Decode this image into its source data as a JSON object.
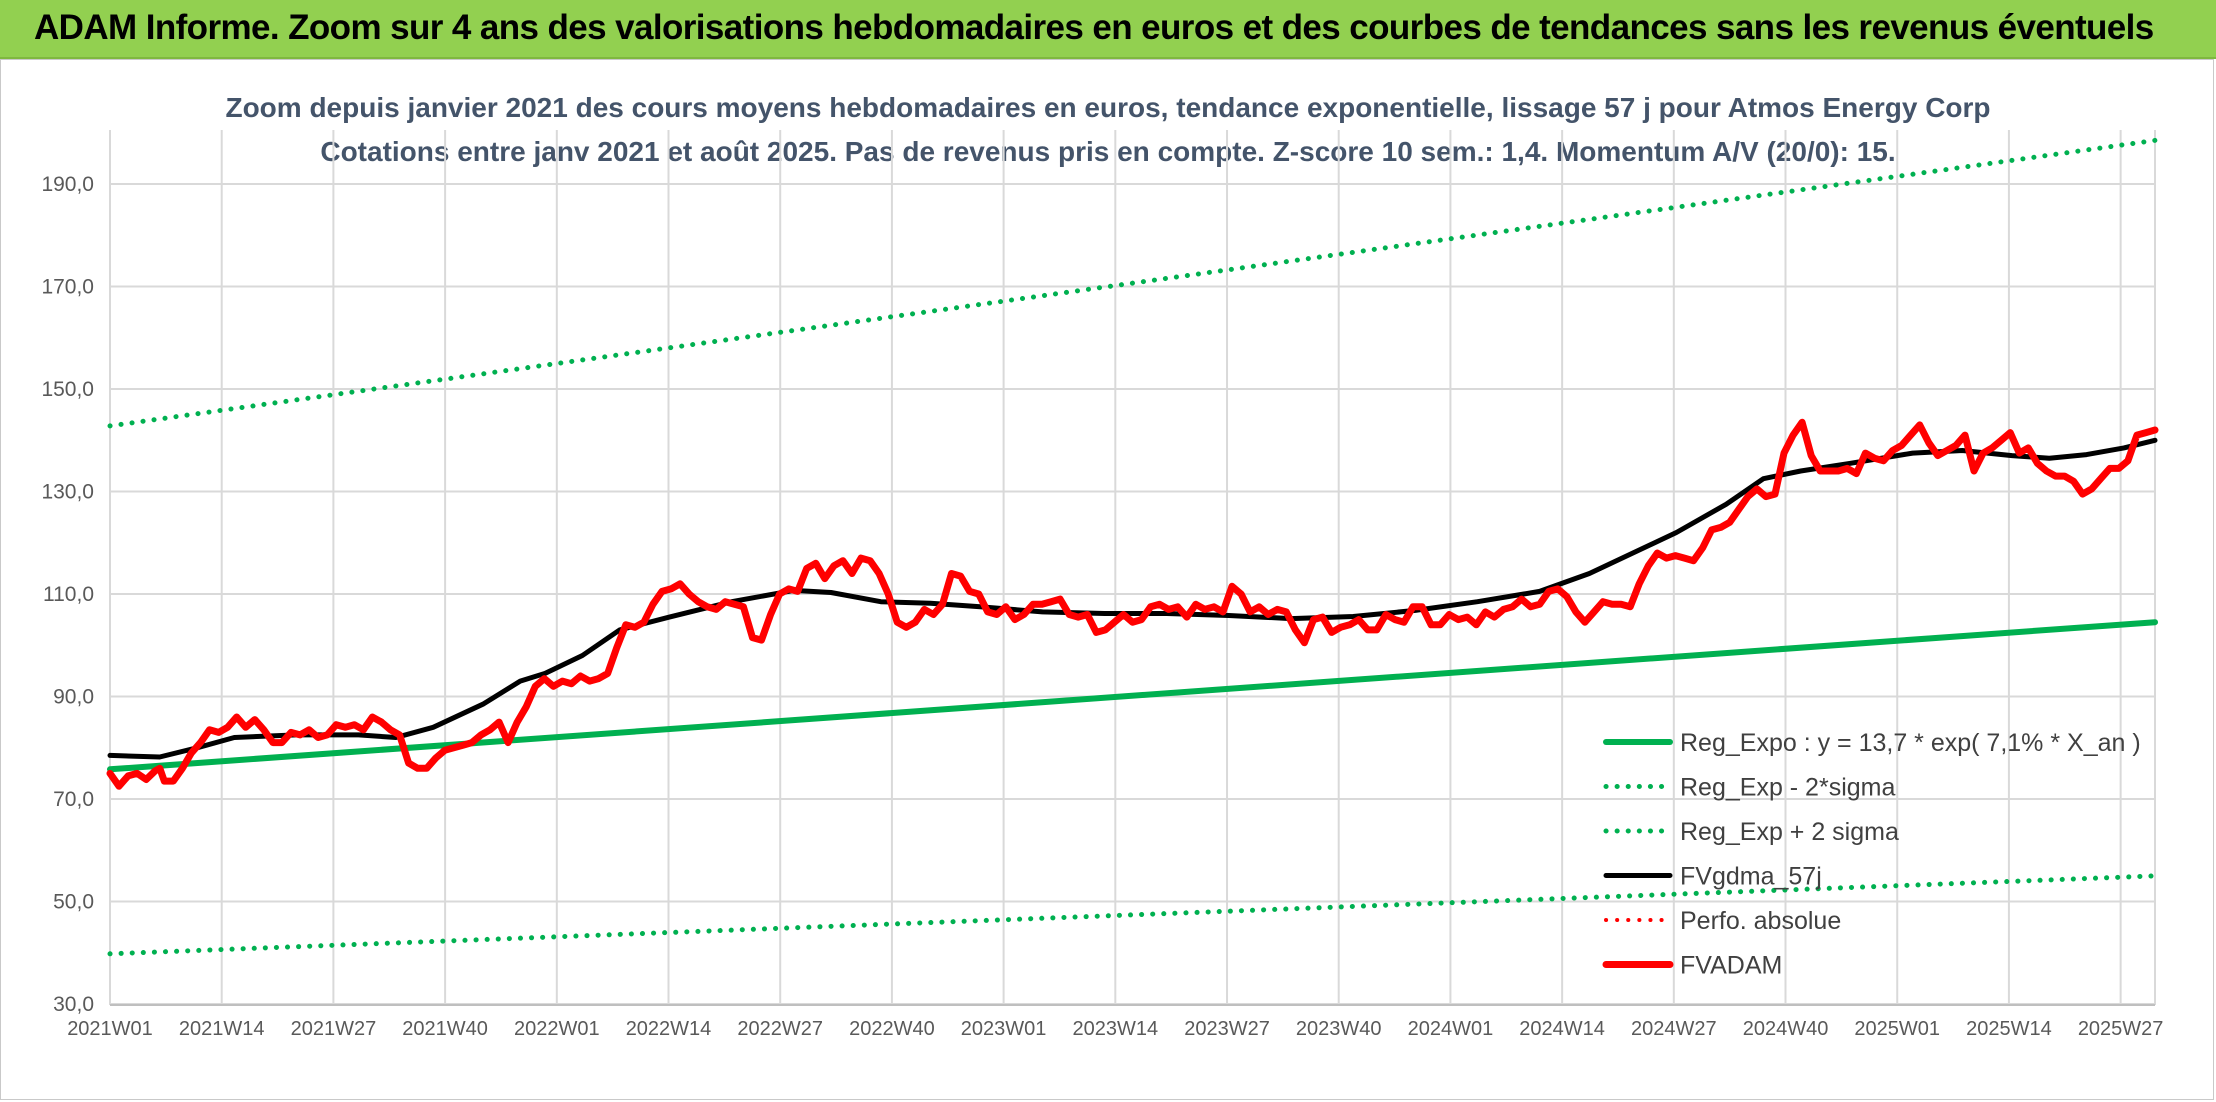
{
  "banner": {
    "title": "ADAM Informe. Zoom sur 4 ans des valorisations hebdomadaires en euros et des courbes de tendances sans les revenus éventuels"
  },
  "chart_data": {
    "type": "line",
    "title_lines": [
      "Zoom depuis janvier 2021 des cours moyens hebdomadaires en euros, tendance exponentielle, lissage 57 j pour Atmos Energy Corp",
      "Cotations entre janv 2021 et août 2025. Pas de revenus pris en compte. Z-score 10 sem.: 1,4. Momentum A/V (20/0): 15."
    ],
    "xlabel": "",
    "ylabel": "",
    "ylim": [
      30,
      200
    ],
    "yticks": [
      "30,0",
      "50,0",
      "70,0",
      "90,0",
      "110,0",
      "130,0",
      "150,0",
      "170,0",
      "190,0"
    ],
    "ytick_values": [
      30,
      50,
      70,
      90,
      110,
      130,
      150,
      170,
      190
    ],
    "x_tick_labels": [
      "2021W01",
      "2021W14",
      "2021W27",
      "2021W40",
      "2022W01",
      "2022W14",
      "2022W27",
      "2022W40",
      "2023W01",
      "2023W14",
      "2023W27",
      "2023W40",
      "2024W01",
      "2024W14",
      "2024W27",
      "2024W40",
      "2025W01",
      "2025W14",
      "2025W27"
    ],
    "x_tick_index_step": 13,
    "n_weeks": 239,
    "grid": true,
    "legend_position": "right",
    "series": [
      {
        "name": "Reg_Expo : y = 13,7 * exp( 7,1% *  X_an )",
        "style": "solid",
        "color": "#00b050",
        "width": 6,
        "start": 75.8,
        "end": 104.5
      },
      {
        "name": "Reg_Exp - 2*sigma",
        "style": "dotted",
        "color": "#00b050",
        "width": 5,
        "start": 39.8,
        "end": 55.0
      },
      {
        "name": "Reg_Exp + 2 sigma",
        "style": "dotted",
        "color": "#00b050",
        "width": 5,
        "start": 142.8,
        "end": 198.5
      },
      {
        "name": "FVgdma_57j",
        "style": "solid",
        "color": "#000000",
        "width": 5,
        "points": [
          [
            0,
            78.5
          ],
          [
            8,
            78.2
          ],
          [
            14,
            80
          ],
          [
            20,
            82
          ],
          [
            30,
            82.5
          ],
          [
            40,
            82.5
          ],
          [
            46,
            82
          ],
          [
            52,
            84
          ],
          [
            60,
            88.5
          ],
          [
            66,
            93
          ],
          [
            70,
            94.5
          ],
          [
            76,
            98
          ],
          [
            82,
            103
          ],
          [
            90,
            105.5
          ],
          [
            100,
            108.5
          ],
          [
            110,
            110.7
          ],
          [
            116,
            110.3
          ],
          [
            124,
            108.5
          ],
          [
            132,
            108.2
          ],
          [
            140,
            107.5
          ],
          [
            150,
            106.5
          ],
          [
            160,
            106.2
          ],
          [
            170,
            106.2
          ],
          [
            180,
            105.8
          ],
          [
            190,
            105.2
          ],
          [
            200,
            105.6
          ],
          [
            210,
            106.8
          ],
          [
            220,
            108.5
          ],
          [
            230,
            110.5
          ],
          [
            238,
            114
          ],
          [
            245,
            118
          ],
          [
            252,
            122
          ],
          [
            260,
            127.5
          ],
          [
            266,
            132.5
          ],
          [
            272,
            134
          ],
          [
            280,
            135.5
          ],
          [
            290,
            137.5
          ],
          [
            298,
            138
          ],
          [
            306,
            137
          ],
          [
            312,
            136.5
          ],
          [
            318,
            137.2
          ],
          [
            324,
            138.5
          ],
          [
            329,
            140
          ]
        ]
      },
      {
        "name": "Perfo. absolue",
        "style": "dotted",
        "color": "#ff0000",
        "width": 4,
        "points": []
      },
      {
        "name": "FVADAM",
        "style": "solid",
        "color": "#ff0000",
        "width": 7,
        "points": [
          [
            0,
            75
          ],
          [
            2,
            72.5
          ],
          [
            4,
            74.5
          ],
          [
            6,
            75
          ],
          [
            8,
            73.8
          ],
          [
            10,
            75.5
          ],
          [
            11,
            76
          ],
          [
            12,
            73.5
          ],
          [
            14,
            73.5
          ],
          [
            16,
            76
          ],
          [
            18,
            79
          ],
          [
            20,
            81
          ],
          [
            22,
            83.5
          ],
          [
            24,
            83
          ],
          [
            26,
            84
          ],
          [
            28,
            86
          ],
          [
            30,
            84
          ],
          [
            32,
            85.5
          ],
          [
            34,
            83.5
          ],
          [
            36,
            81
          ],
          [
            38,
            81
          ],
          [
            40,
            83
          ],
          [
            42,
            82.5
          ],
          [
            44,
            83.5
          ],
          [
            46,
            82
          ],
          [
            48,
            82.5
          ],
          [
            50,
            84.5
          ],
          [
            52,
            84
          ],
          [
            54,
            84.5
          ],
          [
            56,
            83.5
          ],
          [
            58,
            86
          ],
          [
            60,
            85
          ],
          [
            62,
            83.5
          ],
          [
            64,
            82.5
          ],
          [
            66,
            77
          ],
          [
            68,
            76
          ],
          [
            70,
            76
          ],
          [
            72,
            78
          ],
          [
            74,
            79.5
          ],
          [
            76,
            80
          ],
          [
            78,
            80.5
          ],
          [
            80,
            81
          ],
          [
            82,
            82.5
          ],
          [
            84,
            83.5
          ],
          [
            86,
            85
          ],
          [
            88,
            81
          ],
          [
            90,
            85
          ],
          [
            92,
            88
          ],
          [
            94,
            92
          ],
          [
            96,
            93.5
          ],
          [
            98,
            92
          ],
          [
            100,
            93
          ],
          [
            102,
            92.5
          ],
          [
            104,
            94
          ],
          [
            106,
            93
          ],
          [
            108,
            93.5
          ],
          [
            110,
            94.5
          ],
          [
            112,
            99.5
          ],
          [
            114,
            104
          ],
          [
            116,
            103.5
          ],
          [
            118,
            104.5
          ],
          [
            120,
            108
          ],
          [
            122,
            110.5
          ],
          [
            124,
            111
          ],
          [
            126,
            112
          ],
          [
            128,
            110
          ],
          [
            130,
            108.5
          ],
          [
            132,
            107.5
          ],
          [
            134,
            107
          ],
          [
            136,
            108.5
          ],
          [
            138,
            108
          ],
          [
            140,
            107.5
          ],
          [
            142,
            101.5
          ],
          [
            144,
            101
          ],
          [
            146,
            106
          ],
          [
            148,
            110
          ],
          [
            150,
            111
          ],
          [
            152,
            110.5
          ],
          [
            154,
            115
          ],
          [
            156,
            116
          ],
          [
            158,
            113
          ],
          [
            160,
            115.5
          ],
          [
            162,
            116.5
          ],
          [
            164,
            114
          ],
          [
            166,
            117
          ],
          [
            168,
            116.5
          ],
          [
            170,
            114
          ],
          [
            172,
            110
          ],
          [
            174,
            104.5
          ],
          [
            176,
            103.5
          ],
          [
            178,
            104.5
          ],
          [
            180,
            107
          ],
          [
            182,
            106
          ],
          [
            184,
            108
          ],
          [
            186,
            114
          ],
          [
            188,
            113.5
          ],
          [
            190,
            110.5
          ],
          [
            192,
            110
          ],
          [
            194,
            106.5
          ],
          [
            196,
            106
          ],
          [
            198,
            107.5
          ],
          [
            200,
            105
          ],
          [
            202,
            106
          ],
          [
            204,
            108
          ],
          [
            206,
            108
          ],
          [
            208,
            108.5
          ],
          [
            210,
            109
          ],
          [
            212,
            106
          ],
          [
            214,
            105.5
          ],
          [
            216,
            106
          ],
          [
            218,
            102.5
          ],
          [
            220,
            103
          ],
          [
            222,
            104.5
          ],
          [
            224,
            106
          ],
          [
            226,
            104.5
          ],
          [
            228,
            105
          ],
          [
            230,
            107.5
          ],
          [
            232,
            108
          ],
          [
            234,
            107
          ],
          [
            236,
            107.5
          ],
          [
            238,
            105.5
          ],
          [
            240,
            108
          ],
          [
            242,
            107
          ],
          [
            244,
            107.5
          ],
          [
            246,
            106.5
          ],
          [
            248,
            111.5
          ],
          [
            250,
            110
          ],
          [
            252,
            106.5
          ],
          [
            254,
            107.5
          ],
          [
            256,
            106
          ],
          [
            258,
            107
          ],
          [
            260,
            106.5
          ],
          [
            262,
            103
          ],
          [
            264,
            100.5
          ],
          [
            266,
            105
          ],
          [
            268,
            105.5
          ],
          [
            270,
            102.5
          ],
          [
            272,
            103.5
          ],
          [
            274,
            104
          ],
          [
            276,
            105
          ],
          [
            278,
            103
          ],
          [
            280,
            103
          ],
          [
            282,
            106
          ],
          [
            284,
            105
          ],
          [
            286,
            104.5
          ],
          [
            288,
            107.5
          ],
          [
            290,
            107.5
          ],
          [
            292,
            104
          ],
          [
            294,
            104
          ],
          [
            296,
            106
          ],
          [
            298,
            105
          ],
          [
            300,
            105.5
          ],
          [
            302,
            104
          ],
          [
            304,
            106.5
          ],
          [
            306,
            105.5
          ],
          [
            308,
            107
          ],
          [
            310,
            107.5
          ],
          [
            312,
            109
          ],
          [
            314,
            107.5
          ],
          [
            316,
            108
          ],
          [
            318,
            110.5
          ],
          [
            320,
            111
          ],
          [
            322,
            109.5
          ],
          [
            324,
            106.5
          ],
          [
            326,
            104.5
          ],
          [
            328,
            106.5
          ],
          [
            330,
            108.5
          ],
          [
            332,
            108
          ],
          [
            334,
            108
          ],
          [
            336,
            107.5
          ],
          [
            338,
            112
          ],
          [
            340,
            115.5
          ],
          [
            342,
            118
          ],
          [
            344,
            117
          ],
          [
            346,
            117.5
          ],
          [
            348,
            117
          ],
          [
            350,
            116.5
          ],
          [
            352,
            119
          ],
          [
            354,
            122.5
          ],
          [
            356,
            123
          ],
          [
            358,
            124
          ],
          [
            360,
            126.5
          ],
          [
            362,
            129
          ],
          [
            364,
            130.5
          ],
          [
            366,
            129
          ],
          [
            368,
            129.5
          ],
          [
            370,
            137.5
          ],
          [
            372,
            141
          ],
          [
            374,
            143.5
          ],
          [
            376,
            137
          ],
          [
            378,
            134
          ],
          [
            380,
            134
          ],
          [
            382,
            134
          ],
          [
            384,
            134.5
          ],
          [
            386,
            133.5
          ],
          [
            388,
            137.5
          ],
          [
            390,
            136.5
          ],
          [
            392,
            136
          ],
          [
            394,
            138
          ],
          [
            396,
            139
          ],
          [
            398,
            141
          ],
          [
            400,
            143
          ],
          [
            402,
            139.5
          ],
          [
            404,
            137
          ],
          [
            406,
            138
          ],
          [
            408,
            139
          ],
          [
            410,
            141
          ],
          [
            412,
            134
          ],
          [
            414,
            137.5
          ],
          [
            416,
            138.5
          ],
          [
            418,
            140
          ],
          [
            420,
            141.5
          ],
          [
            422,
            137.5
          ],
          [
            424,
            138.5
          ],
          [
            426,
            135.5
          ],
          [
            428,
            134
          ],
          [
            430,
            133
          ],
          [
            432,
            133
          ],
          [
            434,
            132
          ],
          [
            436,
            129.5
          ],
          [
            438,
            130.5
          ],
          [
            440,
            132.5
          ],
          [
            442,
            134.5
          ],
          [
            444,
            134.5
          ],
          [
            446,
            136
          ],
          [
            448,
            141
          ],
          [
            450,
            141.5
          ],
          [
            452,
            142
          ]
        ]
      }
    ]
  }
}
